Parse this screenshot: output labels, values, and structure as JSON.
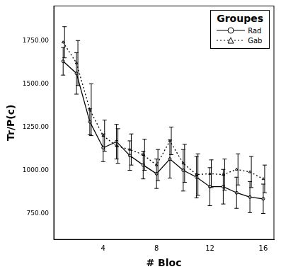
{
  "chart_data": {
    "type": "line",
    "x_label": "# Bloc",
    "y_label": "Tr/P(c)",
    "legend_title": "Groupes",
    "x": [
      1,
      2,
      3,
      4,
      5,
      6,
      7,
      8,
      9,
      10,
      11,
      12,
      13,
      14,
      15,
      16
    ],
    "series": [
      {
        "name": "Rad",
        "color": "#000000",
        "line_style": "solid",
        "marker": "circle",
        "values": [
          1630,
          1560,
          1280,
          1130,
          1165,
          1085,
          1030,
          980,
          1065,
          1000,
          960,
          905,
          905,
          870,
          845,
          835
        ],
        "errors": [
          80,
          120,
          75,
          80,
          100,
          85,
          80,
          85,
          110,
          120,
          120,
          110,
          100,
          90,
          90,
          85
        ]
      },
      {
        "name": "Gab",
        "color": "#000000",
        "line_style": "dotted",
        "marker": "triangle",
        "values": [
          1740,
          1620,
          1350,
          1200,
          1140,
          1120,
          1090,
          1030,
          1170,
          1040,
          975,
          980,
          975,
          1005,
          990,
          950
        ],
        "errors": [
          90,
          130,
          150,
          90,
          100,
          90,
          90,
          90,
          80,
          110,
          120,
          80,
          90,
          90,
          90,
          80
        ]
      }
    ],
    "xlim": [
      0.3,
      16.8
    ],
    "ylim": [
      600,
      1950
    ],
    "xticks": [
      4,
      8,
      12,
      16
    ],
    "yticks": [
      {
        "value": 750,
        "label": "750.00"
      },
      {
        "value": 1000,
        "label": "1000.00"
      },
      {
        "value": 1250,
        "label": "1250.00"
      },
      {
        "value": 1500,
        "label": "1500.00"
      },
      {
        "value": 1750,
        "label": "1750.00"
      }
    ],
    "grid": false,
    "legend": "top-right"
  }
}
